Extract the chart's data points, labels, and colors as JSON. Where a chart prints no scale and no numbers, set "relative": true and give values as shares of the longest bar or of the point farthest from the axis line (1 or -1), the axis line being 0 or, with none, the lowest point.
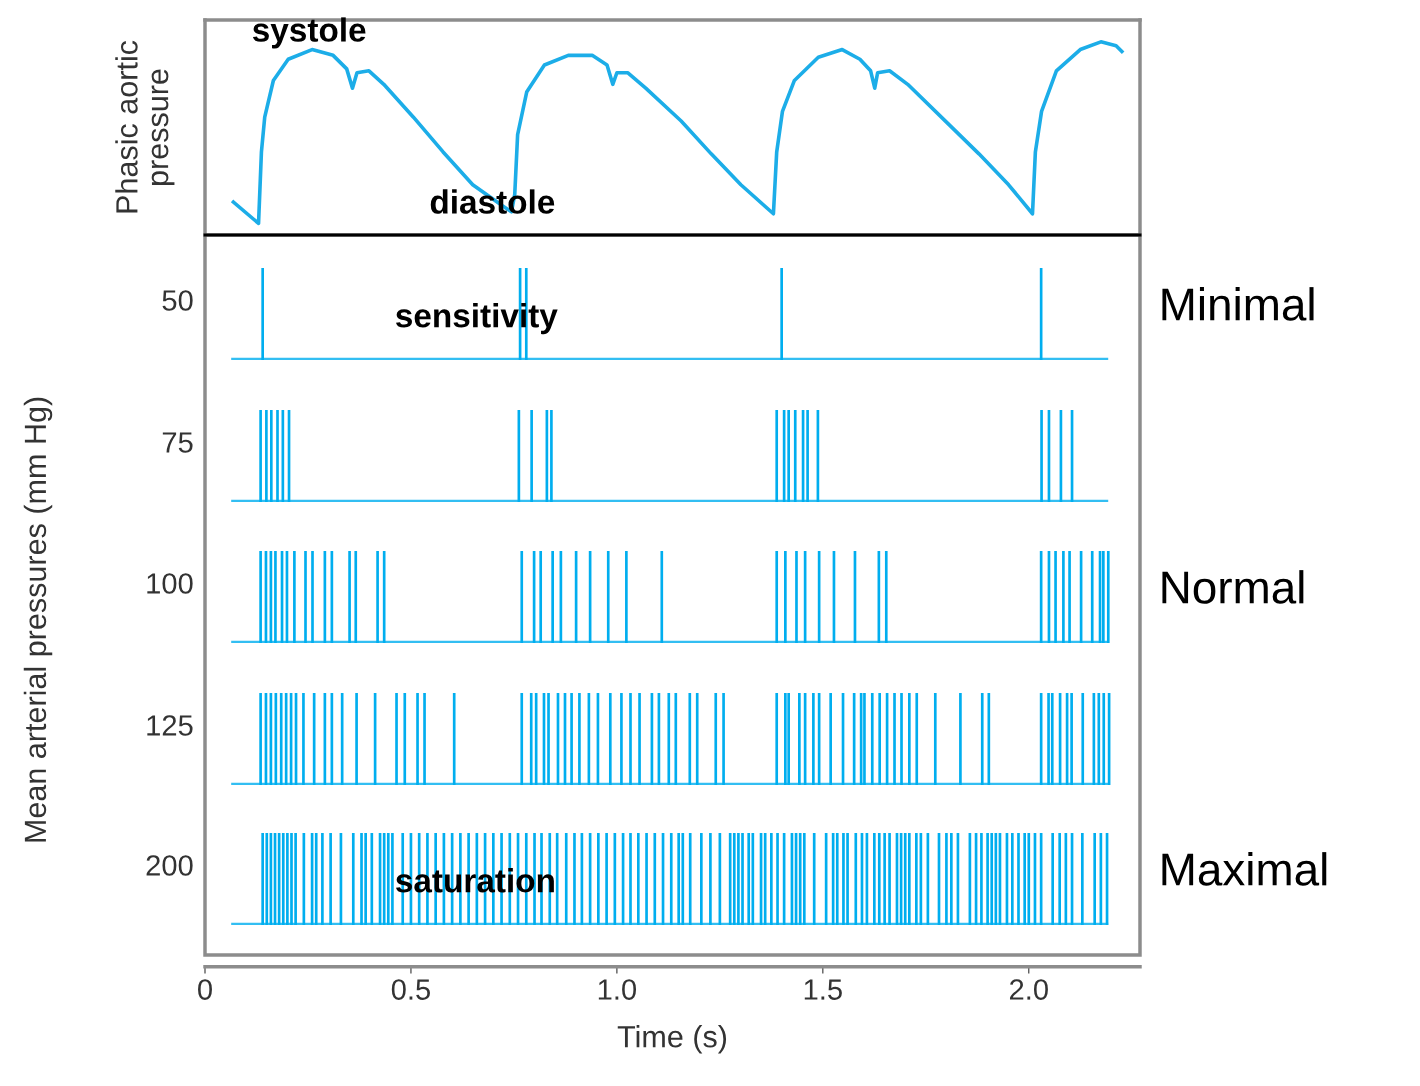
{
  "chart_data": [
    {
      "type": "line",
      "relative": true,
      "color": "#1cade8",
      "ylabel": "Phasic aortic\npressure",
      "xlim": [
        0,
        2.27
      ],
      "annotations": [
        "systole",
        "diastole"
      ],
      "x": [
        0.069,
        0.13,
        0.137,
        0.145,
        0.166,
        0.202,
        0.26,
        0.311,
        0.344,
        0.358,
        0.369,
        0.398,
        0.434,
        0.506,
        0.578,
        0.65,
        0.723,
        0.744,
        0.752,
        0.759,
        0.781,
        0.824,
        0.882,
        0.94,
        0.976,
        0.99,
        1.0,
        1.026,
        1.07,
        1.156,
        1.229,
        1.301,
        1.38,
        1.388,
        1.402,
        1.431,
        1.489,
        1.547,
        1.59,
        1.616,
        1.626,
        1.633,
        1.662,
        1.706,
        1.807,
        1.879,
        1.951,
        2.009,
        2.016,
        2.031,
        2.067,
        2.125,
        2.175,
        2.212,
        2.226
      ],
      "values": [
        0.17,
        0.06,
        0.43,
        0.61,
        0.8,
        0.91,
        0.96,
        0.93,
        0.86,
        0.76,
        0.84,
        0.85,
        0.78,
        0.61,
        0.43,
        0.26,
        0.15,
        0.12,
        0.21,
        0.52,
        0.74,
        0.88,
        0.93,
        0.93,
        0.88,
        0.78,
        0.84,
        0.84,
        0.76,
        0.59,
        0.42,
        0.26,
        0.11,
        0.43,
        0.64,
        0.8,
        0.92,
        0.96,
        0.91,
        0.85,
        0.76,
        0.84,
        0.85,
        0.78,
        0.57,
        0.42,
        0.26,
        0.11,
        0.43,
        0.64,
        0.85,
        0.96,
        1,
        0.98,
        0.95
      ]
    },
    {
      "type": "bar",
      "relative": true,
      "color": "#00aeef",
      "ylabel": "50",
      "xlim": [
        0,
        2.27
      ],
      "tick_labels": "y",
      "annotations": [
        "Minimal",
        "sensitivity"
      ],
      "x": [
        0.14,
        0.765,
        0.78,
        1.4,
        2.03
      ],
      "values": [
        1,
        1,
        1,
        1,
        1
      ]
    },
    {
      "type": "bar",
      "relative": true,
      "color": "#00aeef",
      "ylabel": "75",
      "xlim": [
        0,
        2.27
      ],
      "tick_labels": "y",
      "x": [
        0.135,
        0.149,
        0.161,
        0.176,
        0.189,
        0.204,
        0.762,
        0.793,
        0.83,
        0.841,
        1.388,
        1.406,
        1.417,
        1.433,
        1.452,
        1.463,
        1.488,
        2.031,
        2.049,
        2.078,
        2.105
      ],
      "values": [
        1,
        1,
        1,
        1,
        1,
        1,
        1,
        1,
        1,
        1,
        1,
        1,
        1,
        1,
        1,
        1,
        1,
        1,
        1,
        1,
        1
      ]
    },
    {
      "type": "bar",
      "relative": true,
      "color": "#00aeef",
      "ylabel": "100",
      "xlim": [
        0,
        2.27
      ],
      "tick_labels": "y",
      "annotations": [
        "Normal"
      ],
      "x": [
        0.135,
        0.148,
        0.16,
        0.171,
        0.187,
        0.199,
        0.217,
        0.244,
        0.261,
        0.291,
        0.308,
        0.351,
        0.366,
        0.419,
        0.435,
        0.769,
        0.799,
        0.815,
        0.844,
        0.864,
        0.901,
        0.935,
        0.979,
        1.023,
        1.109,
        1.388,
        1.409,
        1.436,
        1.457,
        1.491,
        1.527,
        1.578,
        1.636,
        1.654,
        2.03,
        2.049,
        2.065,
        2.084,
        2.099,
        2.127,
        2.154,
        2.173,
        2.181,
        2.193
      ],
      "values": [
        1,
        1,
        1,
        1,
        1,
        1,
        1,
        1,
        1,
        1,
        1,
        1,
        1,
        1,
        1,
        1,
        1,
        1,
        1,
        1,
        1,
        1,
        1,
        1,
        1,
        1,
        1,
        1,
        1,
        1,
        1,
        1,
        1,
        1,
        1,
        1,
        1,
        1,
        1,
        1,
        1,
        1,
        1,
        1
      ]
    },
    {
      "type": "bar",
      "relative": true,
      "color": "#00aeef",
      "ylabel": "125",
      "xlim": [
        0,
        2.27
      ],
      "tick_labels": "y",
      "x": [
        0.135,
        0.148,
        0.16,
        0.172,
        0.185,
        0.197,
        0.209,
        0.221,
        0.239,
        0.265,
        0.291,
        0.308,
        0.333,
        0.368,
        0.413,
        0.465,
        0.485,
        0.516,
        0.533,
        0.605,
        0.769,
        0.792,
        0.804,
        0.823,
        0.834,
        0.857,
        0.874,
        0.89,
        0.909,
        0.932,
        0.954,
        0.984,
        1.011,
        1.033,
        1.055,
        1.085,
        1.102,
        1.126,
        1.143,
        1.177,
        1.195,
        1.24,
        1.259,
        1.388,
        1.409,
        1.417,
        1.443,
        1.457,
        1.477,
        1.491,
        1.519,
        1.549,
        1.576,
        1.593,
        1.601,
        1.62,
        1.638,
        1.656,
        1.674,
        1.691,
        1.71,
        1.728,
        1.773,
        1.834,
        1.887,
        1.903,
        2.03,
        2.048,
        2.057,
        2.076,
        2.093,
        2.104,
        2.131,
        2.158,
        2.17,
        2.182,
        2.195
      ],
      "values": [
        1,
        1,
        1,
        1,
        1,
        1,
        1,
        1,
        1,
        1,
        1,
        1,
        1,
        1,
        1,
        1,
        1,
        1,
        1,
        1,
        1,
        1,
        1,
        1,
        1,
        1,
        1,
        1,
        1,
        1,
        1,
        1,
        1,
        1,
        1,
        1,
        1,
        1,
        1,
        1,
        1,
        1,
        1,
        1,
        1,
        1,
        1,
        1,
        1,
        1,
        1,
        1,
        1,
        1,
        1,
        1,
        1,
        1,
        1,
        1,
        1,
        1,
        1,
        1,
        1,
        1,
        1,
        1,
        1,
        1,
        1,
        1,
        1,
        1,
        1,
        1,
        1
      ]
    },
    {
      "type": "bar",
      "relative": true,
      "color": "#00aeef",
      "ylabel": "200",
      "xlabel": "Time (s)",
      "xlim": [
        0,
        2.27
      ],
      "xticks": [
        0,
        0.5,
        {
          "value": 1,
          "label": "1.0"
        },
        1.5,
        {
          "value": 2,
          "label": "2.0"
        }
      ],
      "annotations": [
        "Maximal",
        "saturation",
        "Mean arterial pressures (mm Hg)"
      ],
      "x": [
        0.14,
        0.15,
        0.16,
        0.17,
        0.18,
        0.19,
        0.2,
        0.21,
        0.22,
        0.24,
        0.26,
        0.27,
        0.285,
        0.305,
        0.33,
        0.36,
        0.38,
        0.39,
        0.405,
        0.425,
        0.435,
        0.445,
        0.455,
        0.48,
        0.5,
        0.52,
        0.54,
        0.56,
        0.58,
        0.6,
        0.62,
        0.64,
        0.66,
        0.68,
        0.7,
        0.72,
        0.74,
        0.76,
        0.78,
        0.8,
        0.817,
        0.837,
        0.855,
        0.877,
        0.897,
        0.915,
        0.935,
        0.955,
        0.975,
        0.995,
        1.015,
        1.033,
        1.052,
        1.072,
        1.092,
        1.112,
        1.132,
        1.15,
        1.16,
        1.178,
        1.205,
        1.227,
        1.25,
        1.275,
        1.285,
        1.295,
        1.305,
        1.32,
        1.33,
        1.35,
        1.36,
        1.375,
        1.39,
        1.406,
        1.425,
        1.435,
        1.445,
        1.455,
        1.479,
        1.508,
        1.525,
        1.535,
        1.55,
        1.56,
        1.58,
        1.595,
        1.607,
        1.625,
        1.637,
        1.65,
        1.662,
        1.68,
        1.69,
        1.7,
        1.71,
        1.727,
        1.738,
        1.755,
        1.782,
        1.8,
        1.812,
        1.828,
        1.857,
        1.872,
        1.885,
        1.9,
        1.91,
        1.92,
        1.93,
        1.947,
        1.96,
        1.975,
        1.99,
        2.0,
        2.015,
        2.03,
        2.058,
        2.075,
        2.09,
        2.105,
        2.13,
        2.16,
        2.175,
        2.19
      ],
      "values": [
        1,
        1,
        1,
        1,
        1,
        1,
        1,
        1,
        1,
        1,
        1,
        1,
        1,
        1,
        1,
        1,
        1,
        1,
        1,
        1,
        1,
        1,
        1,
        1,
        1,
        1,
        1,
        1,
        1,
        1,
        1,
        1,
        1,
        1,
        1,
        1,
        1,
        1,
        1,
        1,
        1,
        1,
        1,
        1,
        1,
        1,
        1,
        1,
        1,
        1,
        1,
        1,
        1,
        1,
        1,
        1,
        1,
        1,
        1,
        1,
        1,
        1,
        1,
        1,
        1,
        1,
        1,
        1,
        1,
        1,
        1,
        1,
        1,
        1,
        1,
        1,
        1,
        1,
        1,
        1,
        1,
        1,
        1,
        1,
        1,
        1,
        1,
        1,
        1,
        1,
        1,
        1,
        1,
        1,
        1,
        1,
        1,
        1,
        1,
        1,
        1,
        1,
        1,
        1,
        1,
        1,
        1,
        1,
        1,
        1,
        1,
        1,
        1,
        1,
        1,
        1,
        1,
        1,
        1,
        1,
        1,
        1,
        1,
        1
      ]
    }
  ]
}
